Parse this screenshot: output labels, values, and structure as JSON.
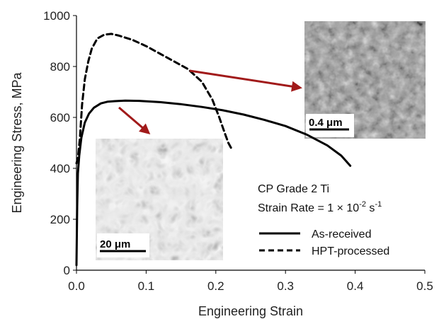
{
  "chart_data": {
    "type": "line",
    "xlabel": "Engineering Strain",
    "ylabel": "Engineering Stress, MPa",
    "xlim": [
      0,
      0.5
    ],
    "ylim": [
      0,
      1000
    ],
    "xticks": [
      "0.0",
      "0.1",
      "0.2",
      "0.3",
      "0.4",
      "0.5"
    ],
    "yticks": [
      "0",
      "200",
      "400",
      "600",
      "800",
      "1000"
    ],
    "grid": false,
    "legend_position": "bottom-right",
    "series": [
      {
        "name": "As-received",
        "style": "solid",
        "color": "#000000",
        "x": [
          0.0,
          0.001,
          0.002,
          0.004,
          0.007,
          0.012,
          0.018,
          0.025,
          0.035,
          0.045,
          0.055,
          0.07,
          0.09,
          0.12,
          0.15,
          0.18,
          0.21,
          0.24,
          0.27,
          0.3,
          0.33,
          0.36,
          0.38,
          0.393
        ],
        "y": [
          20,
          250,
          380,
          450,
          520,
          580,
          615,
          638,
          655,
          662,
          664,
          666,
          665,
          660,
          652,
          641,
          628,
          611,
          590,
          566,
          533,
          490,
          450,
          410
        ]
      },
      {
        "name": "HPT-processed",
        "style": "dashed",
        "color": "#000000",
        "x": [
          0.0,
          0.002,
          0.005,
          0.008,
          0.012,
          0.017,
          0.022,
          0.03,
          0.04,
          0.05,
          0.06,
          0.08,
          0.1,
          0.12,
          0.14,
          0.16,
          0.18,
          0.195,
          0.205,
          0.212,
          0.218,
          0.222
        ],
        "y": [
          420,
          440,
          520,
          650,
          750,
          820,
          870,
          910,
          925,
          928,
          922,
          905,
          880,
          850,
          820,
          790,
          740,
          670,
          600,
          545,
          500,
          480
        ]
      }
    ],
    "annotations": {
      "material": "CP Grade 2 Ti",
      "strain_rate_prefix": "Strain Rate = 1 × 10",
      "strain_rate_exp": "-2",
      "strain_rate_unit": " s",
      "strain_rate_unit_exp": "-1"
    },
    "insets": {
      "hpt_scale": "0.4 μm",
      "asreceived_scale": "20 μm"
    },
    "arrow_color": "#a11a1a"
  }
}
